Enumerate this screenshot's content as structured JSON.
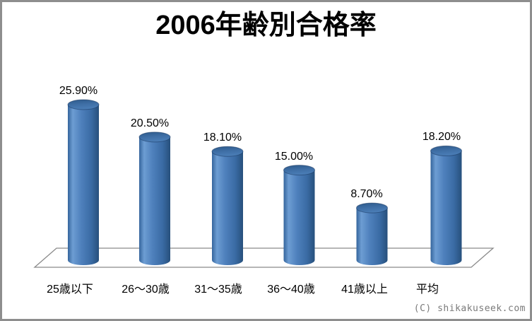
{
  "watermark": "(C) shikakuseek.com",
  "colors": {
    "bar_main": "#4f81bd",
    "bar_edge_dark": "#27507c",
    "bar_edge_left": "#35659c",
    "bar_highlight": "#6d9dd3",
    "bar_top_dark": "#2d5a8b",
    "bar_top_light": "#4a7db6",
    "floor_line": "#8a8a8a",
    "frame_border": "#8e8e8e",
    "text": "#000000",
    "watermark_gray": "#7a7a7a"
  },
  "chart_data": {
    "type": "bar",
    "style": "3d-cylinder",
    "title": "2006年齢別合格率",
    "categories": [
      "25歳以下",
      "26〜30歳",
      "31〜35歳",
      "36〜40歳",
      "41歳以上",
      "平均"
    ],
    "values": [
      25.9,
      20.5,
      18.1,
      15.0,
      8.7,
      18.2
    ],
    "labels": [
      "25.90%",
      "20.50%",
      "18.10%",
      "15.00%",
      "8.70%",
      "18.20%"
    ],
    "ylabel": "",
    "xlabel": "",
    "ylim": [
      0,
      28
    ],
    "grid": false,
    "legend": false,
    "floor": "flat-parallelogram"
  }
}
